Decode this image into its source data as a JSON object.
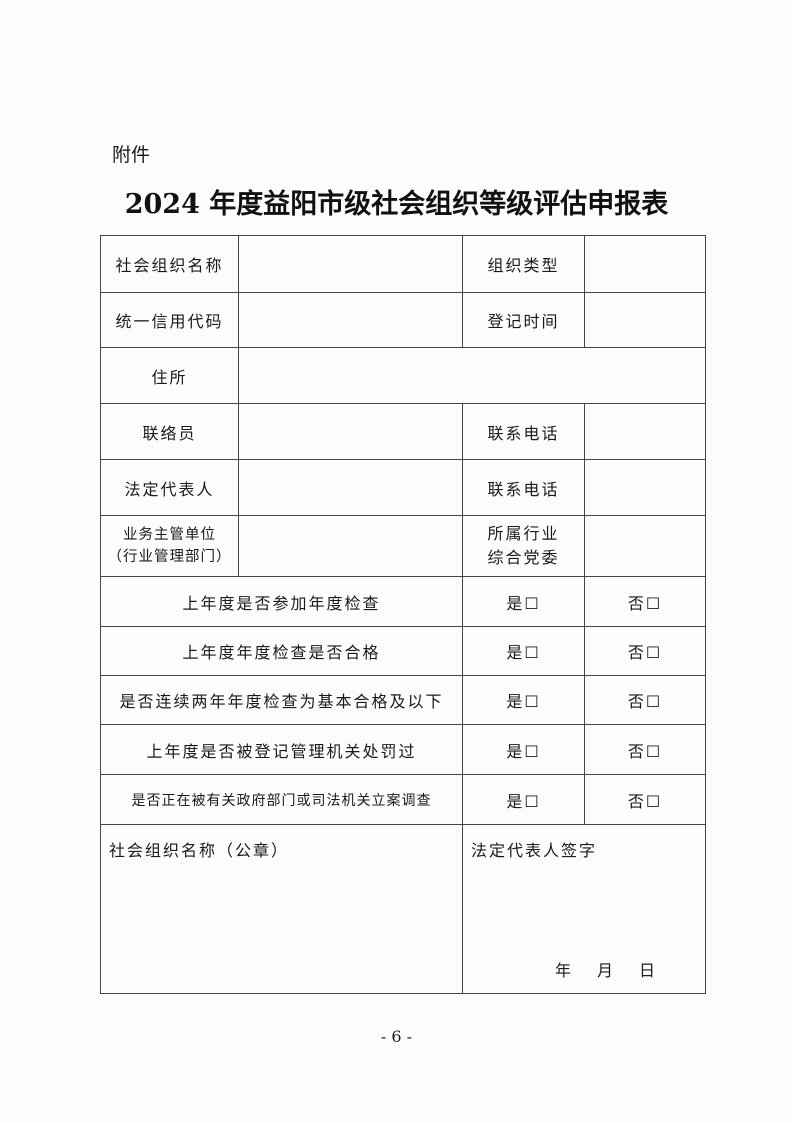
{
  "attachment_label": "附件",
  "title": "2024 年度益阳市级社会组织等级评估申报表",
  "fields": {
    "org_name": "社会组织名称",
    "org_type": "组织类型",
    "credit_code": "统一信用代码",
    "reg_time": "登记时间",
    "address": "住所",
    "liaison": "联络员",
    "phone1": "联系电话",
    "legal_rep": "法定代表人",
    "phone2": "联系电话",
    "supervisor_line1": "业务主管单位",
    "supervisor_line2": "（行业管理部门）",
    "party_line1": "所属行业",
    "party_line2": "综合党委"
  },
  "questions": [
    {
      "text": "上年度是否参加年度检查",
      "yes": "是☐",
      "no": "否☐"
    },
    {
      "text": "上年度年度检查是否合格",
      "yes": "是☐",
      "no": "否☐"
    },
    {
      "text": "是否连续两年年度检查为基本合格及以下",
      "yes": "是☐",
      "no": "否☐"
    },
    {
      "text": "上年度是否被登记管理机关处罚过",
      "yes": "是☐",
      "no": "否☐"
    },
    {
      "text": "是否正在被有关政府部门或司法机关立案调查",
      "yes": "是☐",
      "no": "否☐"
    }
  ],
  "signature": {
    "seal_label": "社会组织名称（公章）",
    "rep_sign_label": "法定代表人签字",
    "year": "年",
    "month": "月",
    "day": "日"
  },
  "page_number": "- 6 -"
}
